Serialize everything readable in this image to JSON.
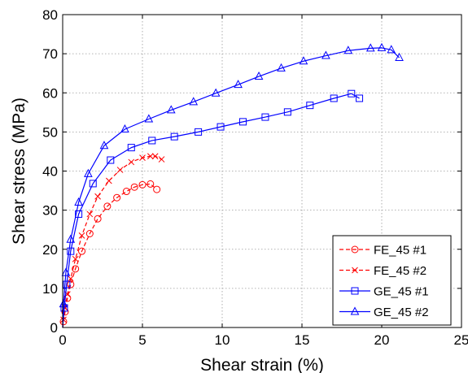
{
  "chart_data": {
    "type": "line",
    "xlabel": "Shear strain (%)",
    "ylabel": "Shear stress (MPa)",
    "xlim": [
      0,
      25
    ],
    "ylim": [
      0,
      80
    ],
    "xticks": [
      0,
      5,
      10,
      15,
      20,
      25
    ],
    "yticks": [
      0,
      10,
      20,
      30,
      40,
      50,
      60,
      70,
      80
    ],
    "grid": true,
    "legend_position": "bottom-right",
    "series": [
      {
        "name": "FE_45 #1",
        "color": "#ff0000",
        "line_style": "dashed",
        "marker": "circle",
        "x": [
          0,
          0.05,
          0.15,
          0.3,
          0.5,
          0.8,
          1.2,
          1.7,
          2.2,
          2.8,
          3.4,
          4.0,
          4.5,
          5.0,
          5.5,
          5.9
        ],
        "y": [
          0,
          1.5,
          4,
          7.5,
          11,
          15,
          19.5,
          24,
          27.8,
          31,
          33.2,
          34.8,
          35.9,
          36.5,
          36.7,
          35.3
        ]
      },
      {
        "name": "FE_45 #2",
        "color": "#ff0000",
        "line_style": "dashed",
        "marker": "x",
        "x": [
          0,
          0.05,
          0.15,
          0.3,
          0.5,
          0.8,
          1.2,
          1.7,
          2.2,
          2.9,
          3.6,
          4.3,
          5.0,
          5.5,
          5.8,
          6.2
        ],
        "y": [
          0,
          2,
          5,
          8.5,
          12.5,
          17.5,
          23.5,
          29,
          33.5,
          37.5,
          40.3,
          42.3,
          43.4,
          43.8,
          43.8,
          43.0
        ]
      },
      {
        "name": "GE_45 #1",
        "color": "#0000ff",
        "line_style": "solid",
        "marker": "square",
        "x": [
          0,
          0.1,
          0.25,
          0.5,
          1.0,
          1.9,
          3.0,
          4.3,
          5.6,
          7.0,
          8.5,
          9.9,
          11.3,
          12.7,
          14.1,
          15.5,
          17.0,
          18.1,
          18.6
        ],
        "y": [
          0,
          5,
          11,
          19.5,
          29,
          36.8,
          42.8,
          46,
          47.8,
          48.8,
          50,
          51.3,
          52.6,
          53.8,
          55.1,
          56.8,
          58.6,
          59.8,
          58.6
        ]
      },
      {
        "name": "GE_45 #2",
        "color": "#0000ff",
        "line_style": "solid",
        "marker": "triangle",
        "x": [
          0,
          0.05,
          0.2,
          0.5,
          1.0,
          1.6,
          2.6,
          3.9,
          5.4,
          6.8,
          8.2,
          9.6,
          11.0,
          12.3,
          13.7,
          15.1,
          16.5,
          17.9,
          19.3,
          20.0,
          20.6,
          21.1
        ],
        "y": [
          0,
          6,
          14,
          22.5,
          32,
          39.3,
          46.5,
          50.7,
          53.3,
          55.6,
          57.7,
          59.9,
          62.1,
          64.2,
          66.3,
          68.1,
          69.5,
          70.8,
          71.4,
          71.5,
          71.0,
          69.0
        ]
      }
    ]
  }
}
